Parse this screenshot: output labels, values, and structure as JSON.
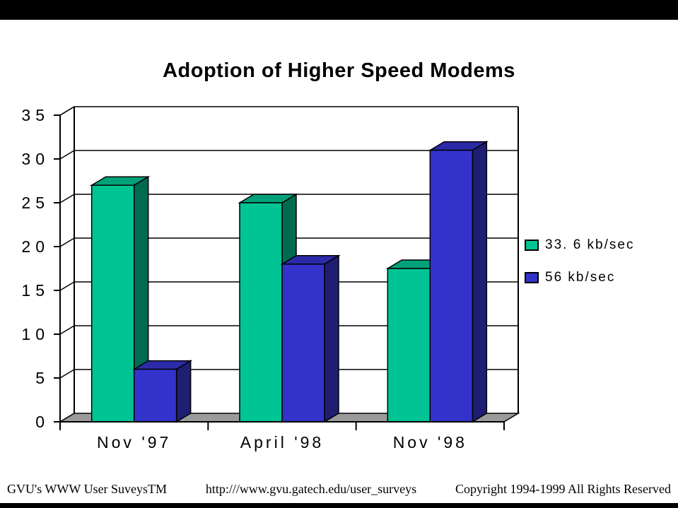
{
  "page": {
    "footer": {
      "left": "GVU's WWW User SuveysTM",
      "center": "http:///www.gvu.gatech.edu/user_surveys",
      "right": "Copyright 1994-1999 All Rights Reserved"
    }
  },
  "chart_data": {
    "type": "bar",
    "style": "3d",
    "title": "Adoption of Higher Speed Modems",
    "categories": [
      "Nov '97",
      "April '98",
      "Nov '98"
    ],
    "series": [
      {
        "name": "33. 6 kb/sec",
        "values": [
          27,
          25,
          17.5
        ],
        "color": "#00C493",
        "top_color": "#00A179",
        "side_color": "#006B51"
      },
      {
        "name": "56 kb/sec",
        "values": [
          6,
          18,
          31
        ],
        "color": "#3333CC",
        "top_color": "#2B2BA8",
        "side_color": "#1E1E73"
      }
    ],
    "ylim": [
      0,
      35
    ],
    "ytick_step": 5,
    "xlabel": "",
    "ylabel": "",
    "grid": true,
    "legend_position": "right",
    "floor_color": "#9B9B9B",
    "axis_color": "#000000"
  }
}
